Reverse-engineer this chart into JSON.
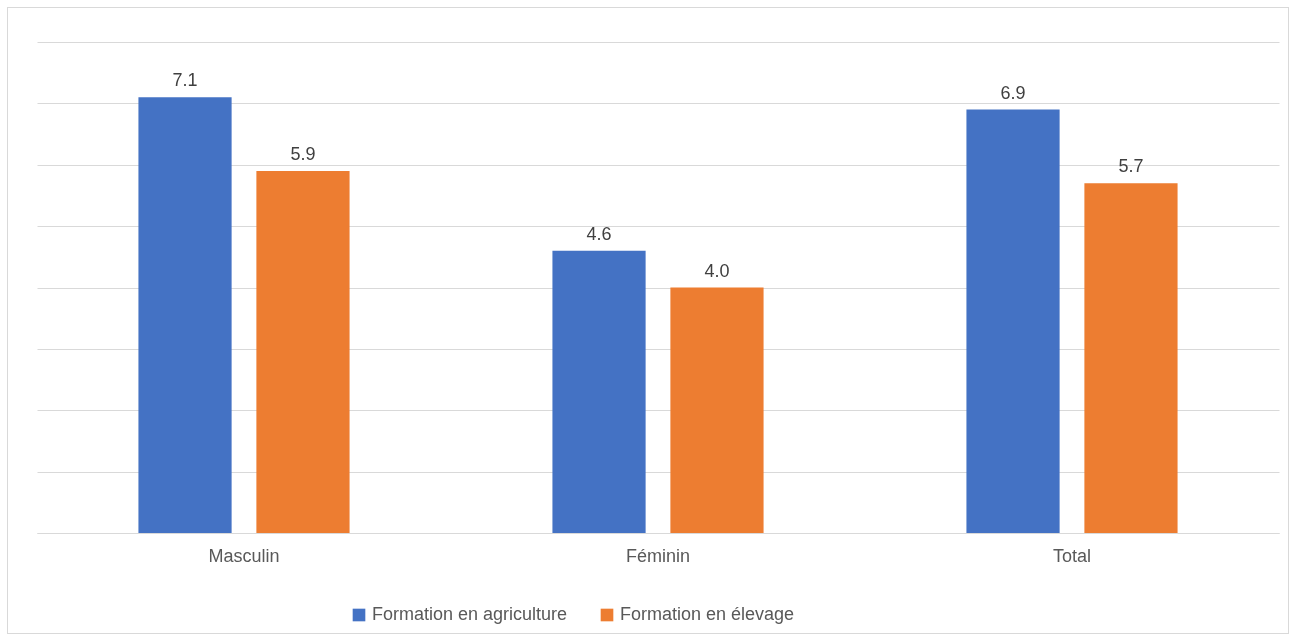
{
  "chart_data": {
    "type": "bar",
    "categories": [
      "Masculin",
      "Féminin",
      "Total"
    ],
    "series": [
      {
        "name": "Formation en agriculture",
        "color": "#4472c4",
        "values": [
          7.1,
          4.6,
          6.9
        ],
        "value_labels": [
          "7.1",
          "4.6",
          "6.9"
        ]
      },
      {
        "name": "Formation en élevage",
        "color": "#ed7d31",
        "values": [
          5.9,
          4.0,
          5.7
        ],
        "value_labels": [
          "5.9",
          "4.0",
          "5.7"
        ]
      }
    ],
    "ylim": [
      0,
      8
    ],
    "yticks": [
      {
        "value": 0,
        "label": null
      },
      {
        "value": 1,
        "label": null
      },
      {
        "value": 2,
        "label": null
      },
      {
        "value": 3,
        "label": null
      },
      {
        "value": 4,
        "label": null
      },
      {
        "value": 5,
        "label": null
      },
      {
        "value": 6,
        "label": null
      },
      {
        "value": 7,
        "label": null
      },
      {
        "value": 8,
        "label": null
      }
    ],
    "grid": "y",
    "tick_labels": "x",
    "legend": "bottom"
  }
}
